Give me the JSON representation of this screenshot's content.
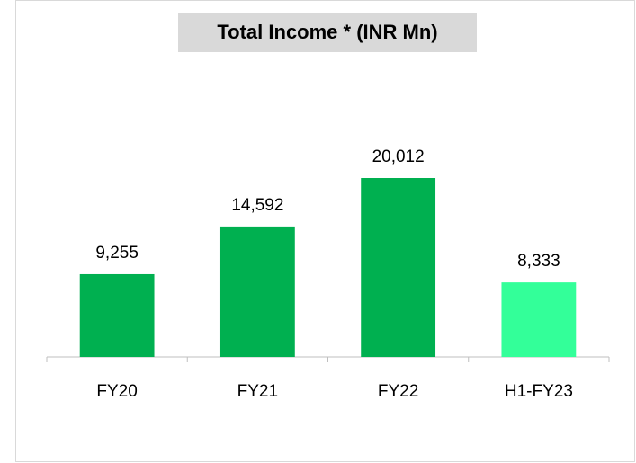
{
  "chart_data": {
    "type": "bar",
    "title": "Total Income * (INR Mn)",
    "categories": [
      "FY20",
      "FY21",
      "FY22",
      "H1-FY23"
    ],
    "values": [
      9255,
      14592,
      20012,
      8333
    ],
    "value_labels": [
      "9,255",
      "14,592",
      "20,012",
      "8,333"
    ],
    "colors": [
      "#00b050",
      "#00b050",
      "#00b050",
      "#33ff99"
    ]
  }
}
